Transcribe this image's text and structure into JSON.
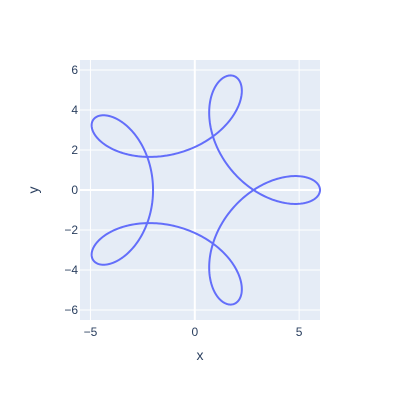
{
  "chart_data": {
    "type": "line",
    "title": "",
    "xlabel": "x",
    "ylabel": "y",
    "xlim": [
      -5.5,
      6.0
    ],
    "ylim": [
      -6.5,
      6.5
    ],
    "grid": true,
    "x_ticks": [
      -5,
      0,
      5
    ],
    "y_ticks": [
      -6,
      -4,
      -2,
      0,
      2,
      4,
      6
    ],
    "x_tick_labels": [
      "−5",
      "0",
      "5"
    ],
    "y_tick_labels": [
      "−6",
      "−4",
      "−2",
      "0",
      "2",
      "4",
      "6"
    ],
    "series": [
      {
        "color": "#636efa",
        "parametric": {
          "x": "4*cos(t) + 2*cos(4t)",
          "y": "4*sin(t) - 2*sin(4t)",
          "t_range": [
            0,
            6.283185
          ],
          "samples": 721
        }
      }
    ]
  },
  "colors": {
    "plot_bg": "#e5ecf6",
    "grid": "#ffffff",
    "text": "#2a3f5f",
    "line": "#636efa"
  }
}
